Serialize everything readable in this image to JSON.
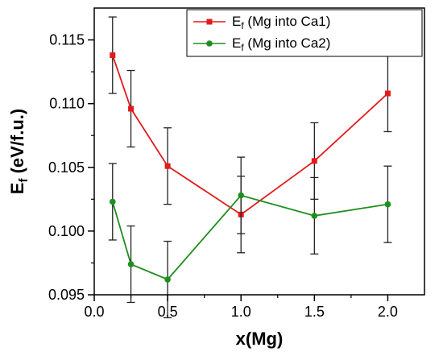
{
  "chart_data": {
    "type": "line",
    "title": "",
    "xlabel": "x(Mg)",
    "ylabel": "E_f (eV/f.u.)",
    "ylabel_parts": {
      "main": "E",
      "sub": "f",
      "rest": " (eV/f.u.)"
    },
    "xlim": [
      0.0,
      2.25
    ],
    "ylim": [
      0.095,
      0.1175
    ],
    "xticks": [
      0.0,
      0.5,
      1.0,
      1.5,
      2.0
    ],
    "xtick_labels": [
      "0.0",
      "0.5",
      "1.0",
      "1.5",
      "2.0"
    ],
    "yticks": [
      0.095,
      0.1,
      0.105,
      0.11,
      0.115
    ],
    "ytick_labels": [
      "0.095",
      "0.100",
      "0.105",
      "0.110",
      "0.115"
    ],
    "grid": false,
    "legend_position": "top-right",
    "series": [
      {
        "name": "E_f (Mg into Ca1)",
        "name_parts": {
          "main": "E",
          "sub": "f",
          "rest": " (Mg into Ca1)"
        },
        "color": "#e31a1c",
        "marker": "square",
        "x": [
          0.125,
          0.25,
          0.5,
          1.0,
          1.5,
          2.0
        ],
        "y": [
          0.1138,
          0.1096,
          0.1051,
          0.1013,
          0.1055,
          0.1108
        ],
        "yerr": [
          0.003,
          0.003,
          0.003,
          0.003,
          0.003,
          0.003
        ]
      },
      {
        "name": "E_f (Mg into Ca2)",
        "name_parts": {
          "main": "E",
          "sub": "f",
          "rest": " (Mg into Ca2)"
        },
        "color": "#1e8f1e",
        "marker": "circle",
        "x": [
          0.125,
          0.25,
          0.5,
          1.0,
          1.5,
          2.0
        ],
        "y": [
          0.1023,
          0.0974,
          0.0962,
          0.1028,
          0.1012,
          0.1021
        ],
        "yerr": [
          0.003,
          0.003,
          0.003,
          0.003,
          0.003,
          0.003
        ]
      }
    ]
  }
}
